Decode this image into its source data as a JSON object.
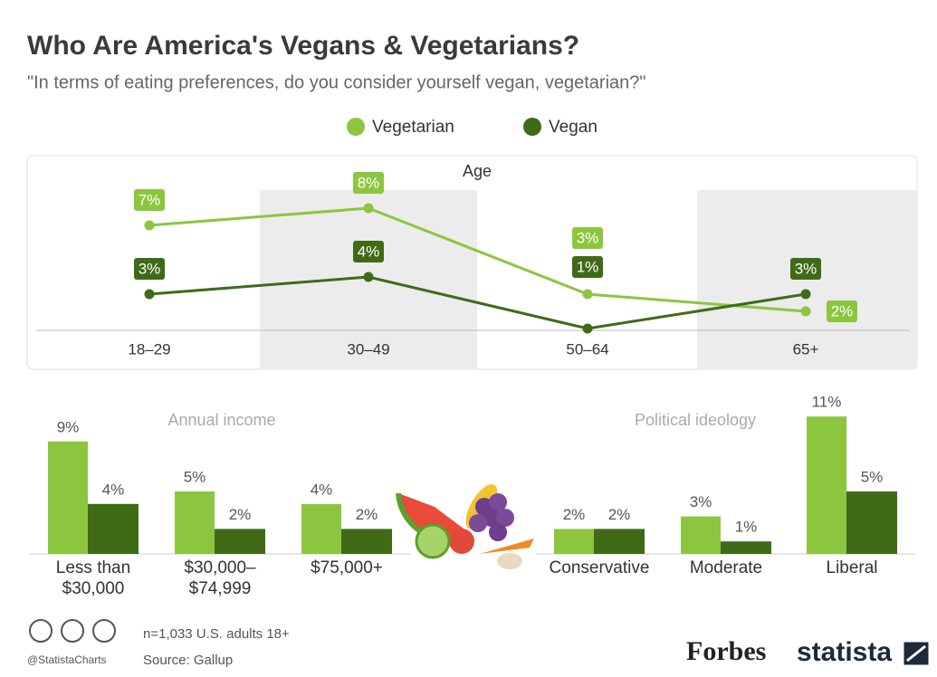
{
  "header": {
    "title": "Who Are America's Vegans & Vegetarians?",
    "subtitle": "\"In terms of eating preferences, do you consider yourself vegan, vegetarian?\""
  },
  "chart_data": [
    {
      "type": "line",
      "title": "Age",
      "categories": [
        "18–29",
        "30–49",
        "50–64",
        "65+"
      ],
      "series": [
        {
          "name": "Vegetarian",
          "color": "#8cc63f",
          "values": [
            7,
            8,
            3,
            2
          ],
          "value_labels": [
            "7%",
            "8%",
            "3%",
            "2%"
          ]
        },
        {
          "name": "Vegan",
          "color": "#3f6b17",
          "values": [
            3,
            4,
            1,
            3
          ],
          "value_labels": [
            "3%",
            "4%",
            "1%",
            "3%"
          ]
        }
      ]
    },
    {
      "type": "bar",
      "title": "Annual income",
      "categories": [
        "Less than $30,000",
        "$30,000–$74,999",
        "$75,000+"
      ],
      "series": [
        {
          "color": "#8cc63f",
          "values": [
            9,
            5,
            4
          ],
          "value_labels": [
            "9%",
            "5%",
            "4%"
          ]
        },
        {
          "color": "#3f6b17",
          "values": [
            4,
            2,
            2
          ],
          "value_labels": [
            "4%",
            "2%",
            "2%"
          ]
        }
      ]
    },
    {
      "type": "bar",
      "title": "Political ideology",
      "categories": [
        "Conservative",
        "Moderate",
        "Liberal"
      ],
      "series": [
        {
          "color": "#8cc63f",
          "values": [
            2,
            3,
            11
          ],
          "value_labels": [
            "2%",
            "3%",
            "11%"
          ]
        },
        {
          "color": "#3f6b17",
          "values": [
            2,
            1,
            5
          ],
          "value_labels": [
            "2%",
            "1%",
            "5%"
          ]
        }
      ]
    }
  ],
  "footer": {
    "sample": "n=1,033 U.S. adults 18+",
    "source": "Source: Gallup",
    "handle": "@StatistaCharts",
    "brands": [
      "Forbes",
      "statista"
    ]
  }
}
